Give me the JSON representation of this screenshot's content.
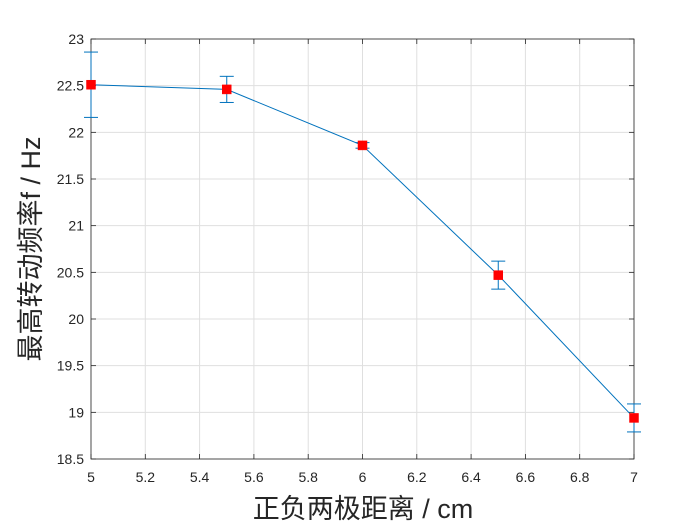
{
  "chart_data": {
    "type": "line",
    "xlabel": "正负两极距离 / cm",
    "ylabel": "最高转动频率f / Hz",
    "xlim": [
      5,
      7
    ],
    "ylim": [
      18.5,
      23
    ],
    "xtick_labels": [
      "5",
      "5.2",
      "5.4",
      "5.6",
      "5.8",
      "6",
      "6.2",
      "6.4",
      "6.6",
      "6.8",
      "7"
    ],
    "ytick_labels": [
      "18.5",
      "19",
      "19.5",
      "20",
      "20.5",
      "21",
      "21.5",
      "22",
      "22.5",
      "23"
    ],
    "grid": true,
    "box": true,
    "grid_color": "#DFDFDF",
    "axis_color": "#262626",
    "series": [
      {
        "x": [
          5,
          5.5,
          6,
          6.5,
          7
        ],
        "y": [
          22.51,
          22.46,
          21.86,
          20.47,
          18.94
        ],
        "yerr": [
          0.35,
          0.14,
          0.03,
          0.15,
          0.15
        ],
        "marker": "square",
        "line_color": "#0072BD",
        "errorbar_color": "#0072BD",
        "marker_color": "#FF0000"
      }
    ]
  }
}
